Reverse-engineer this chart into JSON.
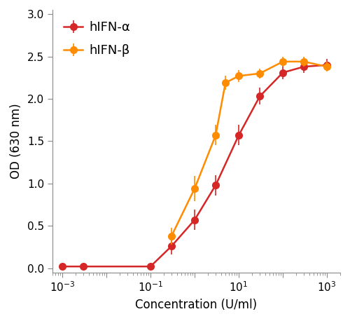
{
  "alpha_x": [
    0.001,
    0.003,
    0.1,
    0.3,
    1.0,
    3.0,
    10.0,
    30.0,
    100.0,
    300.0,
    1000.0
  ],
  "alpha_y": [
    0.02,
    0.02,
    0.02,
    0.26,
    0.57,
    0.98,
    1.57,
    2.03,
    2.31,
    2.38,
    2.4
  ],
  "alpha_yerr": [
    0.01,
    0.01,
    0.01,
    0.1,
    0.12,
    0.12,
    0.12,
    0.1,
    0.08,
    0.07,
    0.07
  ],
  "beta_x": [
    0.3,
    1.0,
    3.0,
    5.0,
    10.0,
    30.0,
    100.0,
    300.0,
    1000.0
  ],
  "beta_y": [
    0.38,
    0.94,
    1.57,
    2.19,
    2.27,
    2.3,
    2.44,
    2.44,
    2.38
  ],
  "beta_yerr": [
    0.1,
    0.15,
    0.12,
    0.08,
    0.07,
    0.06,
    0.06,
    0.06,
    0.06
  ],
  "alpha_color": "#d62728",
  "beta_color": "#ff8c00",
  "alpha_label": "hIFN-α",
  "beta_label": "hIFN-β",
  "xlabel": "Concentration (U/ml)",
  "ylabel": "OD (630 nm)",
  "xlim": [
    0.0006,
    2000
  ],
  "ylim": [
    -0.05,
    3.05
  ],
  "yticks": [
    0.0,
    0.5,
    1.0,
    1.5,
    2.0,
    2.5,
    3.0
  ],
  "xtick_major": [
    0.001,
    0.01,
    0.1,
    1.0,
    10.0,
    100.0,
    1000.0
  ],
  "xtick_labels_show": [
    true,
    false,
    true,
    false,
    true,
    false,
    true
  ],
  "background_color": "#ffffff",
  "marker_size": 8,
  "linewidth": 1.8,
  "capsize": 2.5,
  "elinewidth": 1.2,
  "spine_color": "#888888"
}
